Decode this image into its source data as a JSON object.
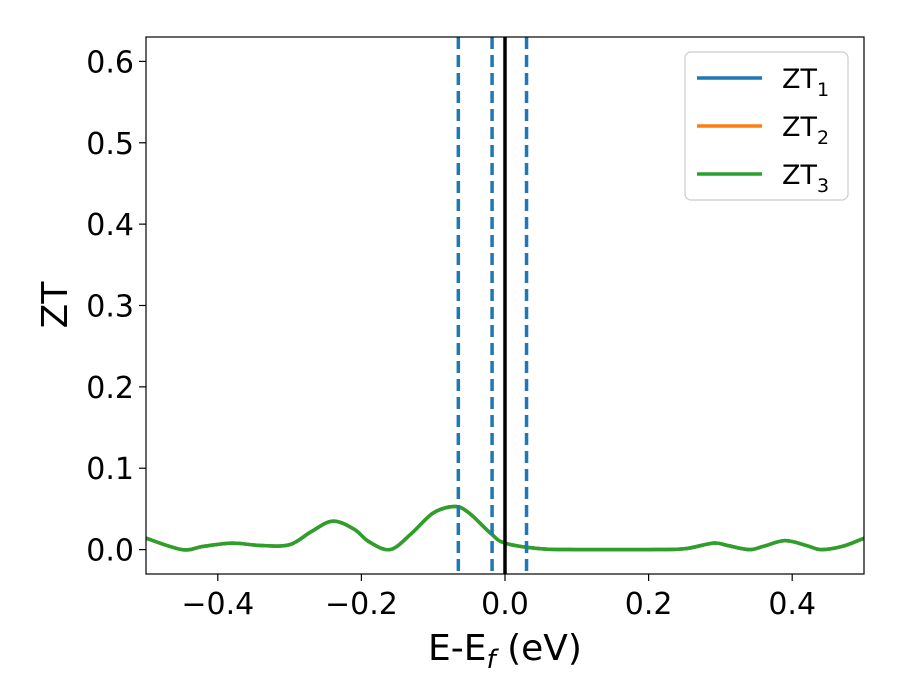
{
  "chart_data": {
    "type": "line",
    "xlabel": "E-E",
    "xlabel_sub": "f",
    "xlabel_unit": "(eV)",
    "ylabel": "ZT",
    "xlim": [
      -0.5,
      0.5
    ],
    "ylim": [
      -0.03,
      0.63
    ],
    "xticks": [
      -0.4,
      -0.2,
      0.0,
      0.2,
      0.4
    ],
    "xtick_labels": [
      "−0.4",
      "−0.2",
      "0.0",
      "0.2",
      "0.4"
    ],
    "yticks": [
      0.0,
      0.1,
      0.2,
      0.3,
      0.4,
      0.5,
      0.6
    ],
    "ytick_labels": [
      "0.0",
      "0.1",
      "0.2",
      "0.3",
      "0.4",
      "0.5",
      "0.6"
    ],
    "grid": false,
    "legend_position": "top-right",
    "series": [
      {
        "name": "ZT",
        "name_sub": "1",
        "color": "#1f77b4",
        "x": [
          -0.5,
          -0.45,
          -0.42,
          -0.38,
          -0.34,
          -0.3,
          -0.27,
          -0.24,
          -0.21,
          -0.19,
          -0.16,
          -0.13,
          -0.1,
          -0.07,
          -0.05,
          -0.02,
          0.0,
          0.05,
          0.1,
          0.15,
          0.2,
          0.25,
          0.29,
          0.31,
          0.34,
          0.36,
          0.39,
          0.42,
          0.44,
          0.47,
          0.5
        ],
        "y": [
          0.014,
          0.0,
          0.004,
          0.008,
          0.005,
          0.006,
          0.022,
          0.035,
          0.025,
          0.01,
          0.0,
          0.02,
          0.045,
          0.053,
          0.045,
          0.02,
          0.008,
          0.001,
          0.0,
          0.0,
          0.0,
          0.001,
          0.008,
          0.005,
          0.0,
          0.004,
          0.011,
          0.005,
          0.0,
          0.004,
          0.014
        ]
      },
      {
        "name": "ZT",
        "name_sub": "2",
        "color": "#ff7f0e",
        "x": [
          -0.5,
          -0.45,
          -0.42,
          -0.38,
          -0.34,
          -0.3,
          -0.27,
          -0.24,
          -0.21,
          -0.19,
          -0.16,
          -0.13,
          -0.1,
          -0.07,
          -0.05,
          -0.02,
          0.0,
          0.05,
          0.1,
          0.15,
          0.2,
          0.25,
          0.29,
          0.31,
          0.34,
          0.36,
          0.39,
          0.42,
          0.44,
          0.47,
          0.5
        ],
        "y": [
          0.014,
          0.0,
          0.004,
          0.008,
          0.005,
          0.006,
          0.022,
          0.035,
          0.025,
          0.01,
          0.0,
          0.02,
          0.045,
          0.053,
          0.045,
          0.02,
          0.008,
          0.001,
          0.0,
          0.0,
          0.0,
          0.001,
          0.008,
          0.005,
          0.0,
          0.004,
          0.011,
          0.005,
          0.0,
          0.004,
          0.014
        ]
      },
      {
        "name": "ZT",
        "name_sub": "3",
        "color": "#2ca02c",
        "x": [
          -0.5,
          -0.45,
          -0.42,
          -0.38,
          -0.34,
          -0.3,
          -0.27,
          -0.24,
          -0.21,
          -0.19,
          -0.16,
          -0.13,
          -0.1,
          -0.07,
          -0.05,
          -0.02,
          0.0,
          0.05,
          0.1,
          0.15,
          0.2,
          0.25,
          0.29,
          0.31,
          0.34,
          0.36,
          0.39,
          0.42,
          0.44,
          0.47,
          0.5
        ],
        "y": [
          0.014,
          0.0,
          0.004,
          0.008,
          0.005,
          0.006,
          0.022,
          0.035,
          0.025,
          0.01,
          0.0,
          0.02,
          0.045,
          0.053,
          0.045,
          0.02,
          0.008,
          0.001,
          0.0,
          0.0,
          0.0,
          0.001,
          0.008,
          0.005,
          0.0,
          0.004,
          0.011,
          0.005,
          0.0,
          0.004,
          0.014
        ]
      }
    ],
    "vlines": [
      {
        "x": -0.065,
        "style": "dashed",
        "color": "#1f77b4"
      },
      {
        "x": -0.018,
        "style": "dashed",
        "color": "#1f77b4"
      },
      {
        "x": 0.0,
        "style": "solid",
        "color": "#000000"
      },
      {
        "x": 0.03,
        "style": "dashed",
        "color": "#1f77b4"
      }
    ]
  }
}
